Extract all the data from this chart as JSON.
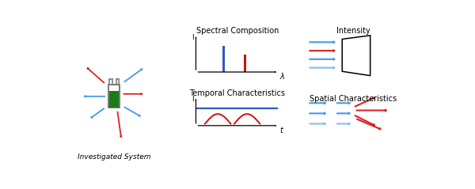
{
  "background_color": "#ffffff",
  "section1_label": "Investigated System",
  "section2_label": "Spectral Composition",
  "section3_label": "Temporal Characteristics",
  "section4_label": "Intensity",
  "section5_label": "Spatial Characteristics",
  "blue_bar_color": "#3355cc",
  "red_bar_color": "#cc1111",
  "green_color": "#1a7a1a",
  "arrow_blue": "#4499ee",
  "arrow_blue_light": "#88bbee",
  "arrow_red": "#dd2222",
  "cuvette_gray": "#777777",
  "axis_color": "#333333",
  "label_fontsize": 6.5,
  "title_fontsize": 7.0
}
